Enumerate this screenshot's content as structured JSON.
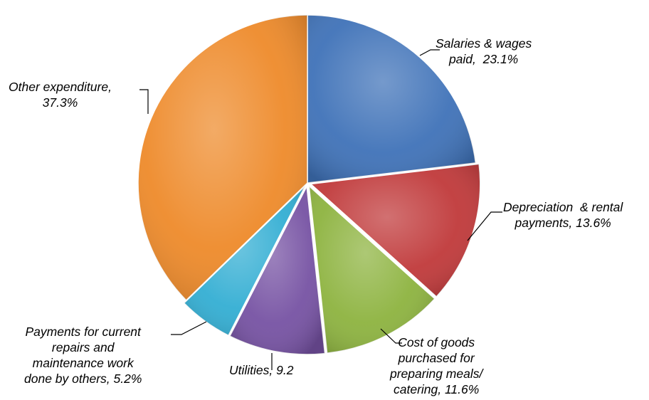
{
  "chart_data": {
    "type": "pie",
    "title": "",
    "slices": [
      {
        "label": "Salaries & wages\npaid,  23.1%",
        "value": 23.1,
        "color": "#3f72b8"
      },
      {
        "label": "Depreciation  & rental\npayments, 13.6%",
        "value": 13.6,
        "color": "#c0393a"
      },
      {
        "label": "Cost of goods\npurchased for\npreparing meals/\ncatering, 11.6%",
        "value": 11.6,
        "color": "#8db33f"
      },
      {
        "label": "Utilities, 9.2",
        "value": 9.2,
        "color": "#7652a3"
      },
      {
        "label": "Payments for current\nrepairs and\nmaintenance work\ndone by others, 5.2%",
        "value": 5.2,
        "color": "#33aed3"
      },
      {
        "label": "Other expenditure,\n37.3%",
        "value": 37.3,
        "color": "#ee8a2a"
      }
    ]
  }
}
